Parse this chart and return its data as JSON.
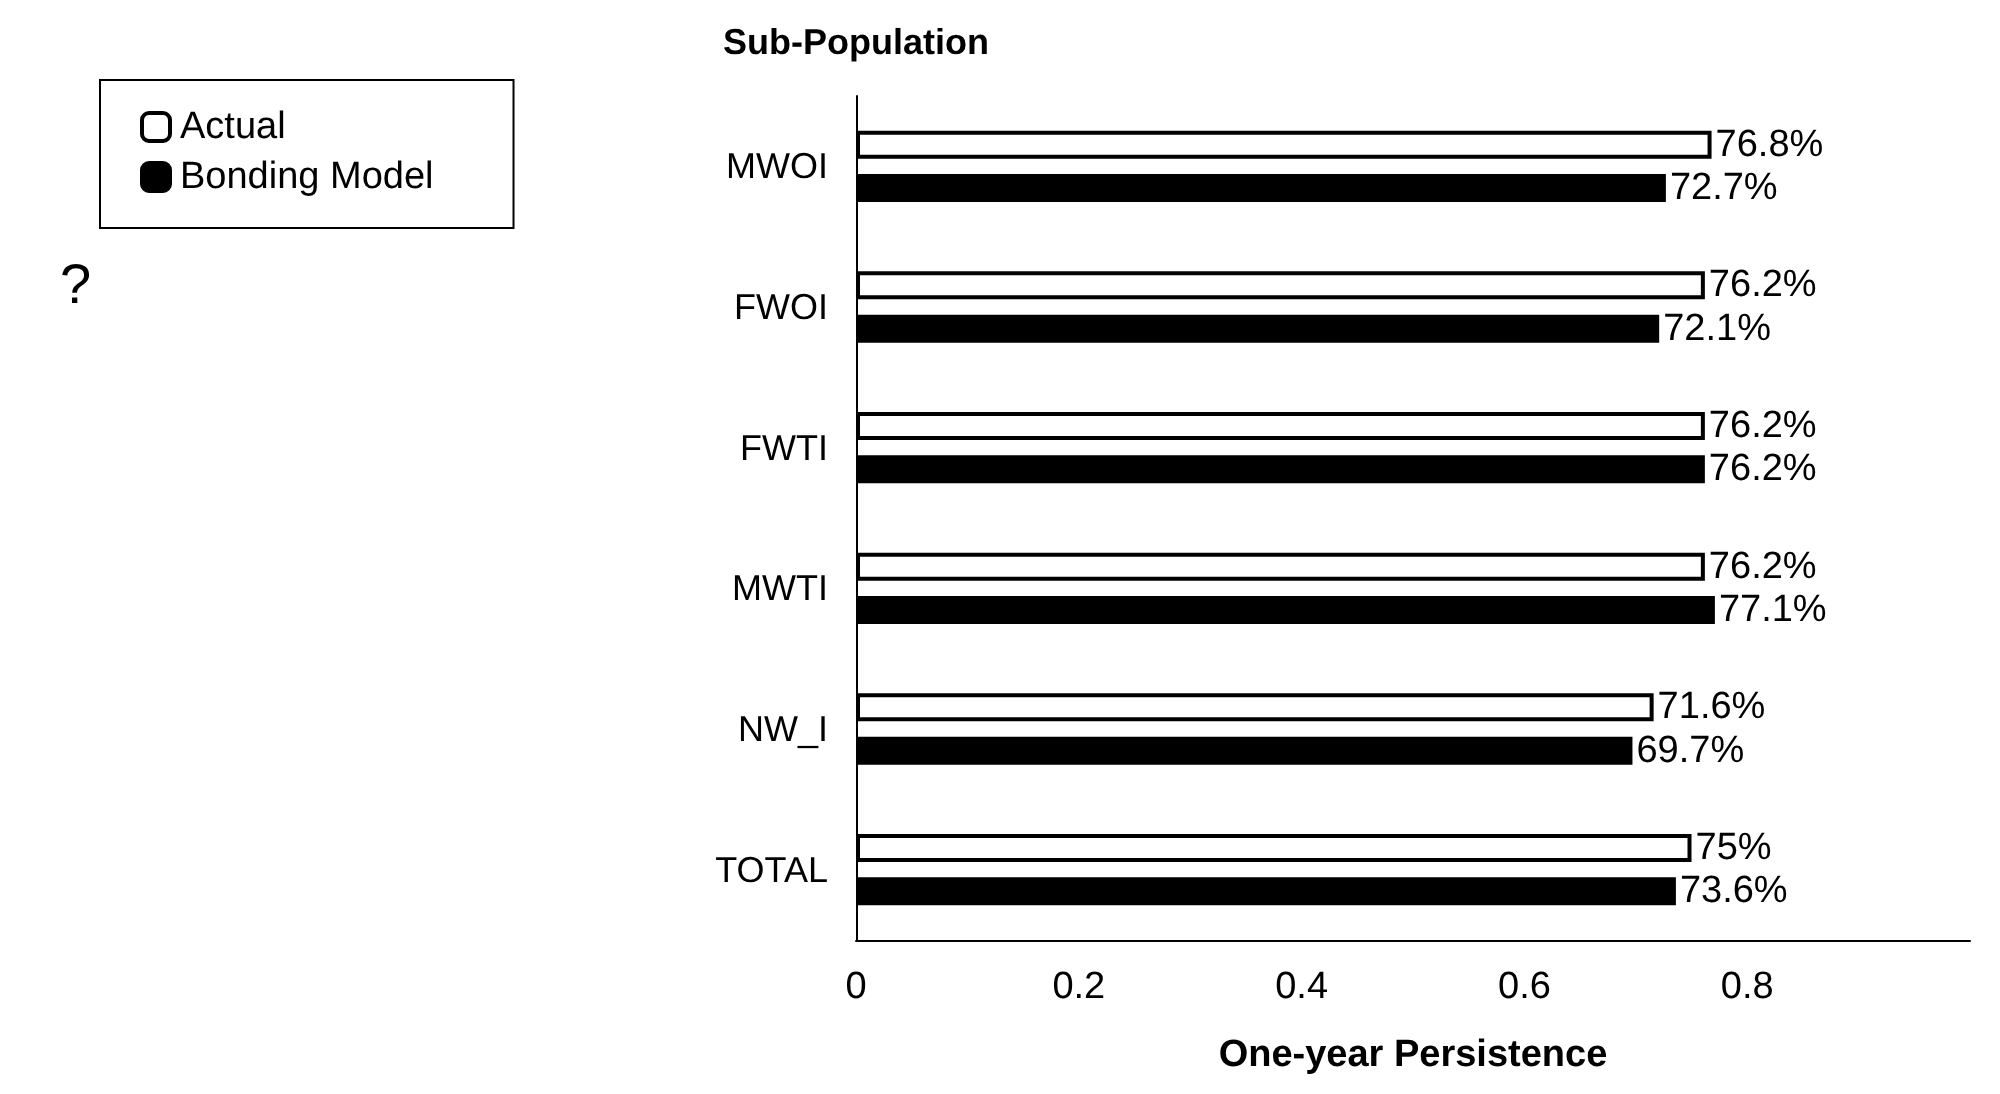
{
  "chart_data": {
    "type": "bar",
    "orientation": "horizontal",
    "ylabel": "Sub-Population",
    "xlabel": "One-year Persistence",
    "categories": [
      "MWOI",
      "FWOI",
      "FWTI",
      "MWTI",
      "NW_I",
      "TOTAL"
    ],
    "series": [
      {
        "name": "Actual",
        "color": "#ffffff",
        "values": [
          0.768,
          0.762,
          0.762,
          0.762,
          0.716,
          0.75
        ],
        "value_labels": [
          "76.8%",
          "76.2%",
          "76.2%",
          "76.2%",
          "71.6%",
          "75%"
        ]
      },
      {
        "name": "Bonding Model",
        "color": "#000000",
        "values": [
          0.727,
          0.721,
          0.762,
          0.771,
          0.697,
          0.736
        ],
        "value_labels": [
          "72.7%",
          "72.1%",
          "76.2%",
          "77.1%",
          "69.7%",
          "73.6%"
        ]
      }
    ],
    "xlim": [
      0,
      1
    ],
    "xticks": [
      0,
      0.2,
      0.4,
      0.6,
      0.8
    ],
    "legend": "top left",
    "annotations": [
      "?"
    ]
  }
}
